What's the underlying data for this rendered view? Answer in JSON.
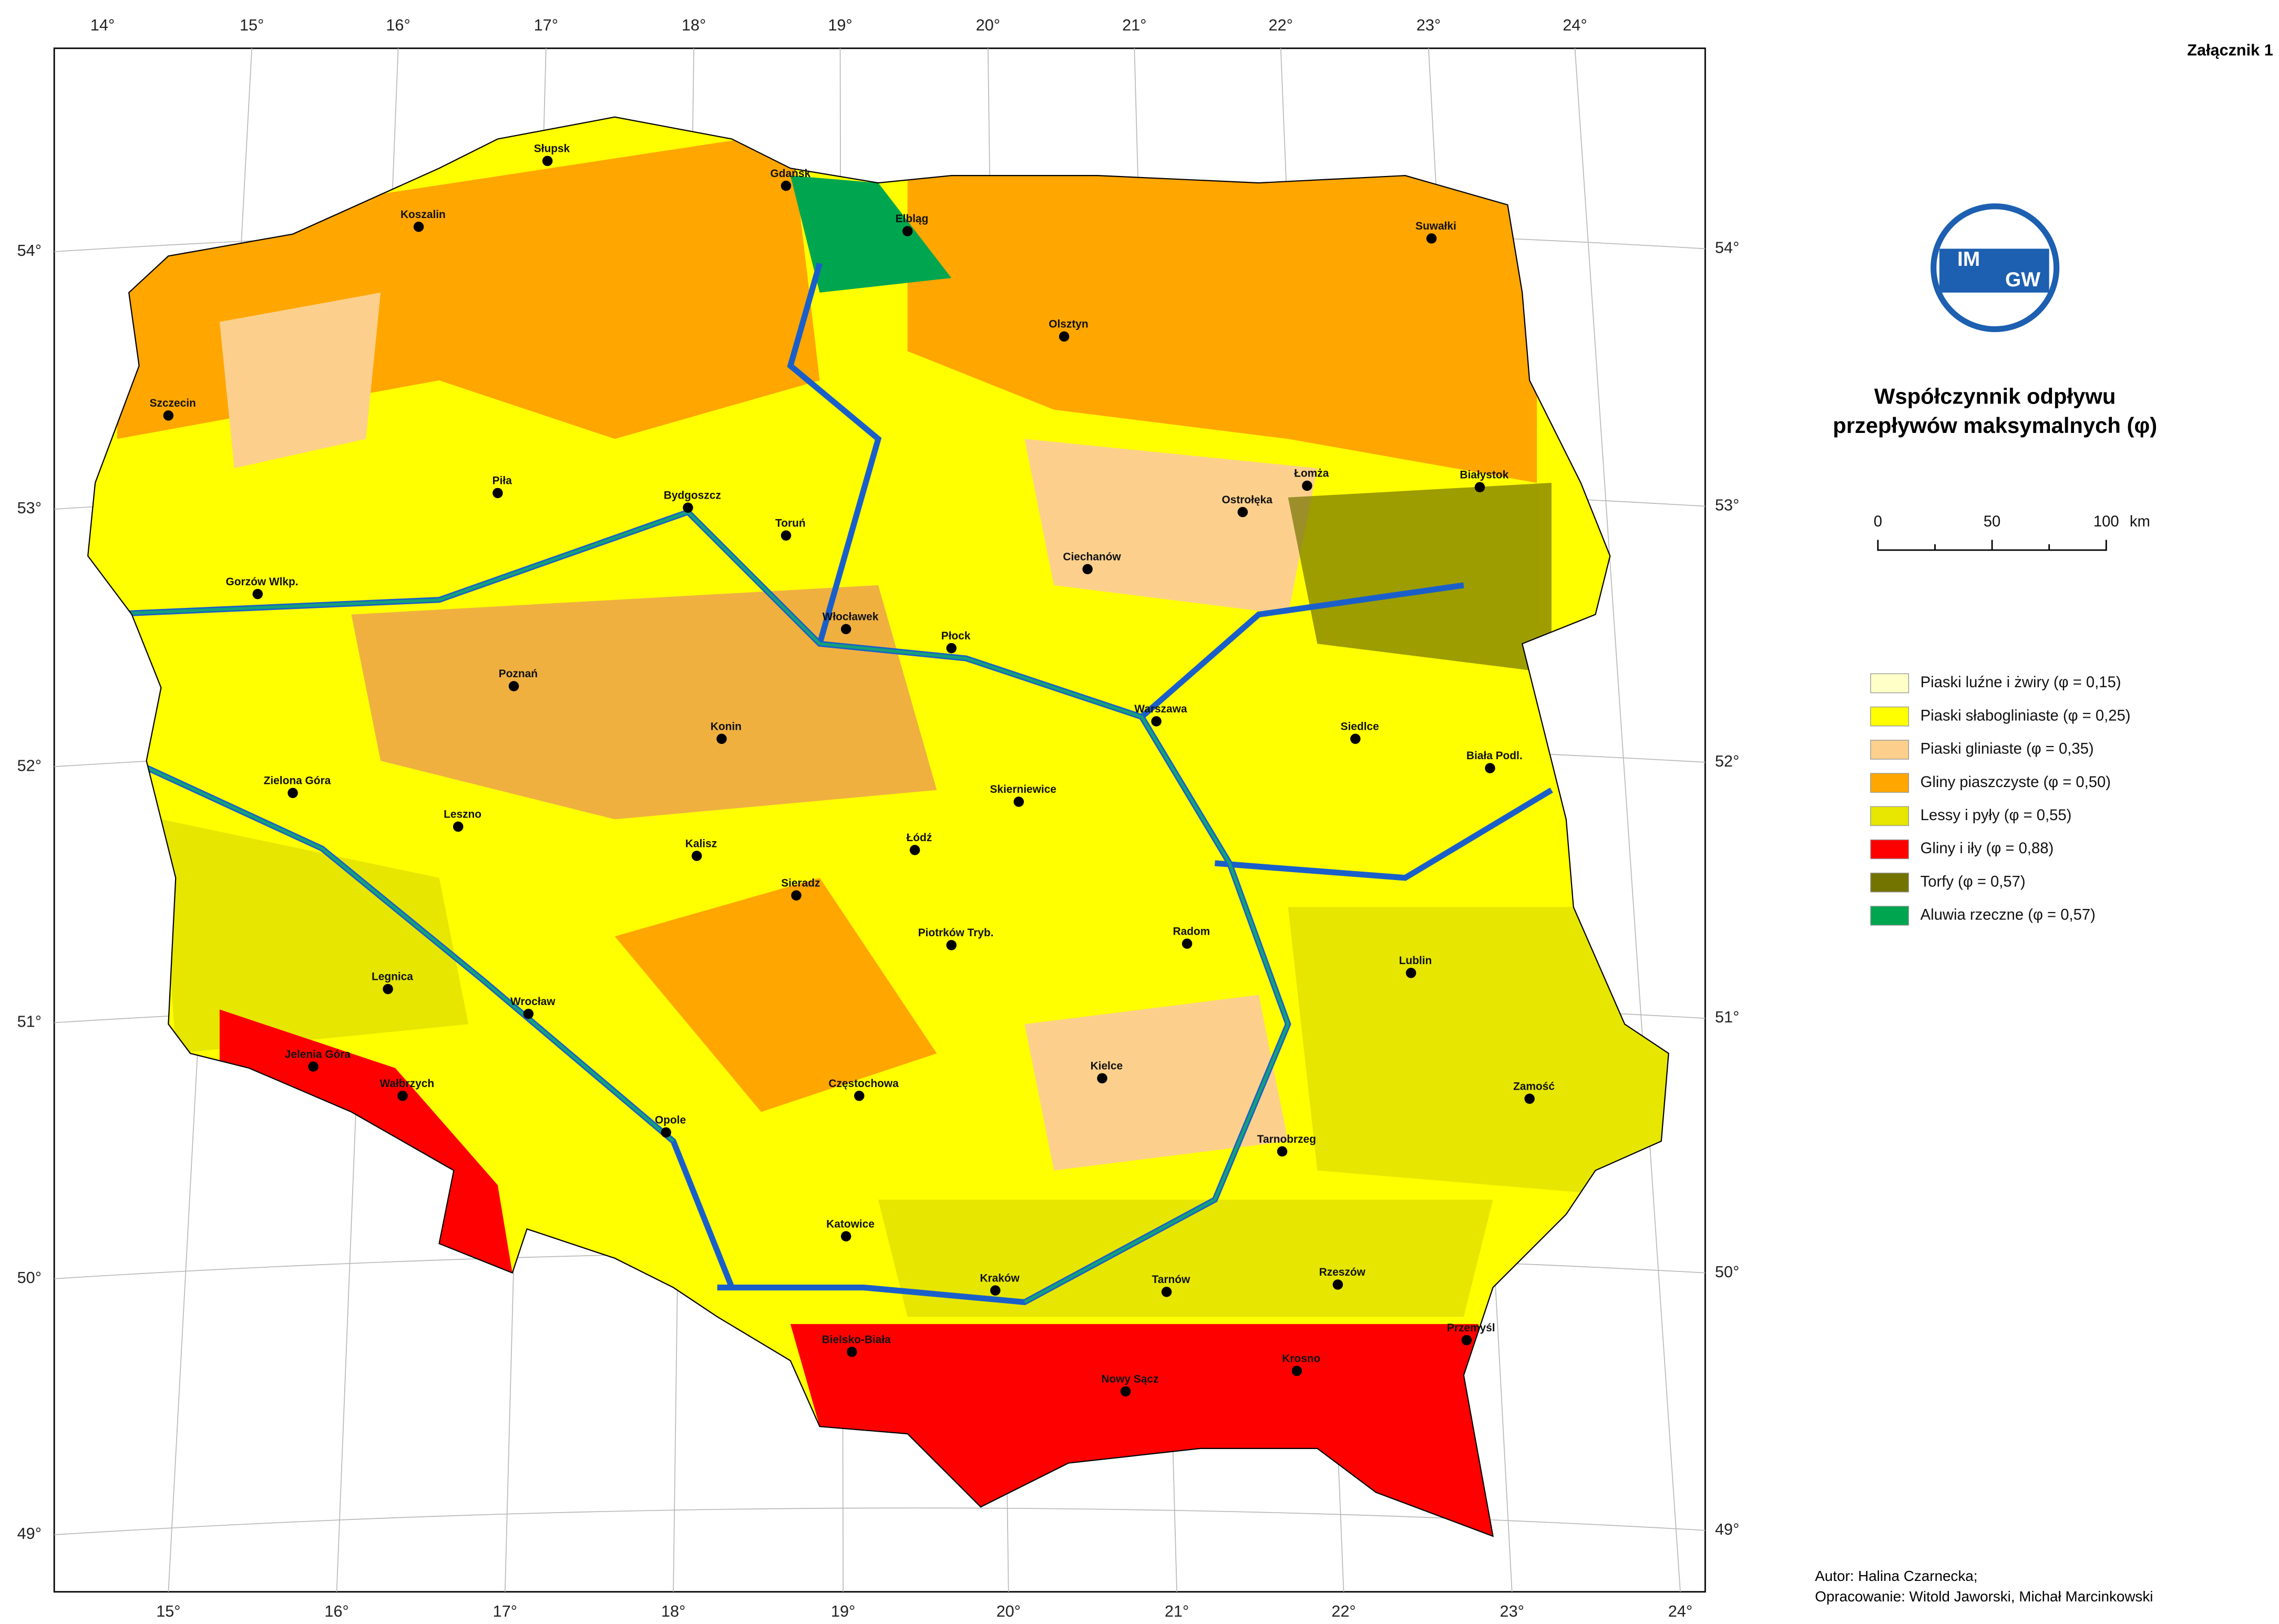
{
  "annex": "Załącznik 1",
  "title": [
    "Współczynnik odpływu",
    "przepływów maksymalnych (φ)"
  ],
  "logo": [
    "IM",
    "GW"
  ],
  "scale": {
    "labels": [
      "0",
      "50",
      "100"
    ],
    "unit": "km"
  },
  "legend": [
    {
      "label": "Piaski luźne i żwiry (φ = 0,15)",
      "color": "#ffffc8"
    },
    {
      "label": "Piaski słabogliniaste (φ = 0,25)",
      "color": "#ffff00"
    },
    {
      "label": "Piaski gliniaste (φ = 0,35)",
      "color": "#fcd08c"
    },
    {
      "label": "Gliny piaszczyste (φ = 0,50)",
      "color": "#ffa600"
    },
    {
      "label": "Lessy i pyły (φ = 0,55)",
      "color": "#e6e600"
    },
    {
      "label": "Gliny i iły (φ = 0,88)",
      "color": "#ff0000"
    },
    {
      "label": "Torfy (φ = 0,57)",
      "color": "#737300"
    },
    {
      "label": "Aluwia rzeczne (φ = 0,57)",
      "color": "#00a64f"
    }
  ],
  "graticule": {
    "top": [
      "14°",
      "15°",
      "16°",
      "17°",
      "18°",
      "19°",
      "20°",
      "21°",
      "22°",
      "23°",
      "24°"
    ],
    "bottom": [
      "15°",
      "16°",
      "17°",
      "18°",
      "19°",
      "20°",
      "21°",
      "22°",
      "23°",
      "24°"
    ],
    "left": [
      "54°",
      "53°",
      "52°",
      "51°",
      "50°",
      "49°"
    ],
    "right": [
      "54°",
      "53°",
      "52°",
      "51°",
      "50°",
      "49°"
    ]
  },
  "cities": [
    "Gdańsk",
    "Słupsk",
    "Koszalin",
    "Elbląg",
    "Suwałki",
    "Olsztyn",
    "Szczecin",
    "Piła",
    "Bydgoszcz",
    "Toruń",
    "Łomża",
    "Białystok",
    "Ostrołęka",
    "Ciechanów",
    "Gorzów Wlkp.",
    "Płock",
    "Włocławek",
    "Poznań",
    "Warszawa",
    "Siedlce",
    "Konin",
    "Biała Podl.",
    "Zielona Góra",
    "Skierniewice",
    "Leszno",
    "Łódź",
    "Kalisz",
    "Sieradz",
    "Radom",
    "Piotrków Tryb.",
    "Lublin",
    "Legnica",
    "Wrocław",
    "Jelenia Góra",
    "Kielce",
    "Częstochowa",
    "Zamość",
    "Wałbrzych",
    "Opole",
    "Tarnobrzeg",
    "Katowice",
    "Rzeszów",
    "Kraków",
    "Tarnów",
    "Przemyśl",
    "Bielsko-Biała",
    "Krosno",
    "Nowy Sącz"
  ],
  "author": [
    "Autor: Halina Czarnecka;",
    "Opracowanie: Witold Jaworski, Michał Marcinkowski"
  ]
}
